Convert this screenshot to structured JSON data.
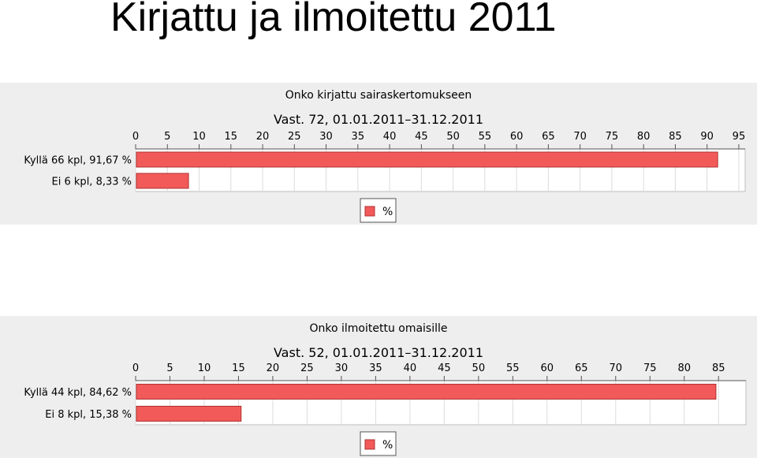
{
  "slide": {
    "title": "Kirjattu ja ilmoitettu 2011"
  },
  "colors": {
    "bar": "#f25a5a",
    "bar_border": "#b03030",
    "panel_bg": "#eeeeee",
    "grid": "#dcdcdc"
  },
  "chart_data": [
    {
      "type": "bar",
      "orientation": "horizontal",
      "title": "Onko kirjattu sairaskertomukseen",
      "subtitle": "Vast. 72, 01.01.2011–31.12.2011",
      "categories": [
        "Kyllä 66 kpl, 91,67 %",
        "Ei 6 kpl, 8,33 %"
      ],
      "series": [
        {
          "name": "%",
          "values": [
            91.67,
            8.33
          ]
        }
      ],
      "xlim": [
        0,
        96
      ],
      "xticks": [
        0,
        5,
        10,
        15,
        20,
        25,
        30,
        35,
        40,
        45,
        50,
        55,
        60,
        65,
        70,
        75,
        80,
        85,
        90,
        95
      ],
      "grid": true,
      "legend": "bottom"
    },
    {
      "type": "bar",
      "orientation": "horizontal",
      "title": "Onko ilmoitettu omaisille",
      "subtitle": "Vast. 52, 01.01.2011–31.12.2011",
      "categories": [
        "Kyllä 44 kpl, 84,62 %",
        "Ei 8 kpl, 15,38 %"
      ],
      "series": [
        {
          "name": "%",
          "values": [
            84.62,
            15.38
          ]
        }
      ],
      "xlim": [
        0,
        89
      ],
      "xticks": [
        0,
        5,
        10,
        15,
        20,
        25,
        30,
        35,
        40,
        45,
        50,
        55,
        60,
        65,
        70,
        75,
        80,
        85
      ],
      "grid": true,
      "legend": "bottom"
    }
  ]
}
